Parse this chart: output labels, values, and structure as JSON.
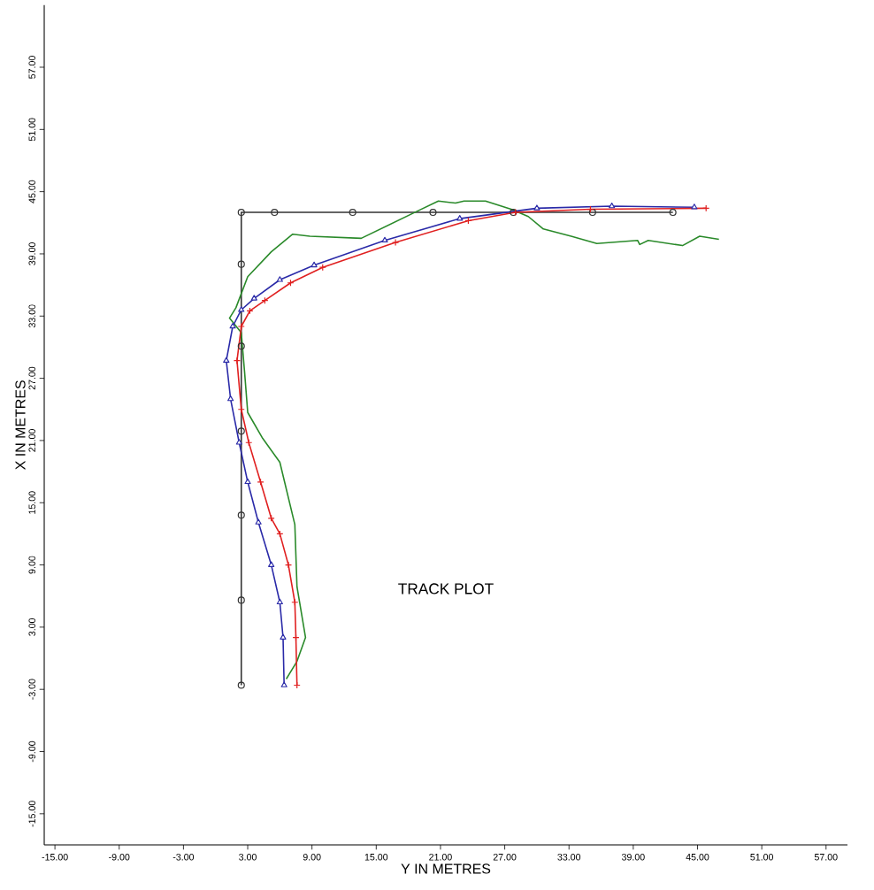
{
  "chart_data": {
    "type": "line",
    "title": "TRACK PLOT",
    "xlabel": "Y IN METRES",
    "ylabel": "X IN METRES",
    "xlim": [
      -16,
      59
    ],
    "ylim": [
      -18,
      63
    ],
    "xticks": [
      {
        "value": -15,
        "label": "-15.00"
      },
      {
        "value": -9,
        "label": "-9.00"
      },
      {
        "value": -3,
        "label": "-3.00"
      },
      {
        "value": 3,
        "label": "3.00"
      },
      {
        "value": 9,
        "label": "9.00"
      },
      {
        "value": 15,
        "label": "15.00"
      },
      {
        "value": 21,
        "label": "21.00"
      },
      {
        "value": 27,
        "label": "27.00"
      },
      {
        "value": 33,
        "label": "33.00"
      },
      {
        "value": 39,
        "label": "39.00"
      },
      {
        "value": 45,
        "label": "45.00"
      },
      {
        "value": 51,
        "label": "51.00"
      },
      {
        "value": 57,
        "label": "57.00"
      }
    ],
    "yticks": [
      {
        "value": -15,
        "label": "-15.00"
      },
      {
        "value": -9,
        "label": "-9.00"
      },
      {
        "value": -3,
        "label": "-3.00"
      },
      {
        "value": 3,
        "label": "3.00"
      },
      {
        "value": 9,
        "label": "9.00"
      },
      {
        "value": 15,
        "label": "15.00"
      },
      {
        "value": 21,
        "label": "21.00"
      },
      {
        "value": 27,
        "label": "27.00"
      },
      {
        "value": 33,
        "label": "33.00"
      },
      {
        "value": 39,
        "label": "39.00"
      },
      {
        "value": 45,
        "label": "45.00"
      },
      {
        "value": 51,
        "label": "51.00"
      },
      {
        "value": 57,
        "label": "57.00"
      }
    ],
    "grid": false,
    "series": [
      {
        "color": "#333333",
        "marker": "circle",
        "x": [
          2.4,
          2.4,
          2.4,
          2.4,
          2.4,
          2.4,
          2.4,
          5.5,
          12.8,
          20.3,
          27.8,
          35.2,
          42.7
        ],
        "values": [
          -2.6,
          5.6,
          13.8,
          21.9,
          30.1,
          38.0,
          43.0,
          43.0,
          43.0,
          43.0,
          43.0,
          43.0,
          43.0
        ]
      },
      {
        "color": "#2a8a2a",
        "marker": "none",
        "x": [
          6.6,
          7.6,
          8.4,
          7.6,
          7.4,
          6.0,
          4.4,
          3.0,
          2.7,
          2.4,
          1.3,
          1.9,
          3.0,
          5.2,
          7.2,
          8.8,
          13.6,
          18.8,
          20.8,
          22.4,
          23.2,
          25.2,
          27.6,
          29.2,
          30.6,
          33.2,
          35.6,
          39.4,
          39.6,
          40.4,
          43.6,
          45.2,
          47.0
        ],
        "values": [
          -2.0,
          -0.3,
          2.0,
          6.9,
          12.9,
          18.9,
          21.2,
          23.7,
          27.7,
          31.4,
          32.8,
          33.8,
          36.8,
          39.2,
          40.9,
          40.7,
          40.5,
          43.1,
          44.1,
          43.9,
          44.1,
          44.1,
          43.3,
          42.6,
          41.4,
          40.7,
          40.0,
          40.3,
          39.9,
          40.3,
          39.8,
          40.7,
          40.4
        ]
      },
      {
        "color": "#2a2aa8",
        "marker": "triangle",
        "x": [
          6.4,
          6.3,
          6.0,
          5.2,
          4.0,
          3.0,
          2.2,
          1.4,
          1.0,
          1.6,
          2.4,
          3.6,
          6.0,
          9.2,
          15.8,
          22.8,
          30.0,
          37.0,
          44.7
        ],
        "values": [
          -2.6,
          2.0,
          5.4,
          9.0,
          13.1,
          17.0,
          20.8,
          25.0,
          28.7,
          32.0,
          33.6,
          34.7,
          36.5,
          37.9,
          40.3,
          42.4,
          43.4,
          43.6,
          43.5
        ]
      },
      {
        "color": "#e02020",
        "marker": "cross",
        "x": [
          7.6,
          7.5,
          7.4,
          6.8,
          6.0,
          5.2,
          4.2,
          3.1,
          2.4,
          2.0,
          2.4,
          3.2,
          4.6,
          7.0,
          10.0,
          16.8,
          23.6,
          28.0,
          35.0,
          45.8
        ],
        "values": [
          -2.6,
          2.0,
          5.4,
          9.0,
          12.0,
          13.5,
          17.0,
          20.8,
          24.0,
          28.7,
          32.0,
          33.5,
          34.5,
          36.2,
          37.7,
          40.1,
          42.2,
          43.0,
          43.3,
          43.4
        ]
      }
    ]
  }
}
